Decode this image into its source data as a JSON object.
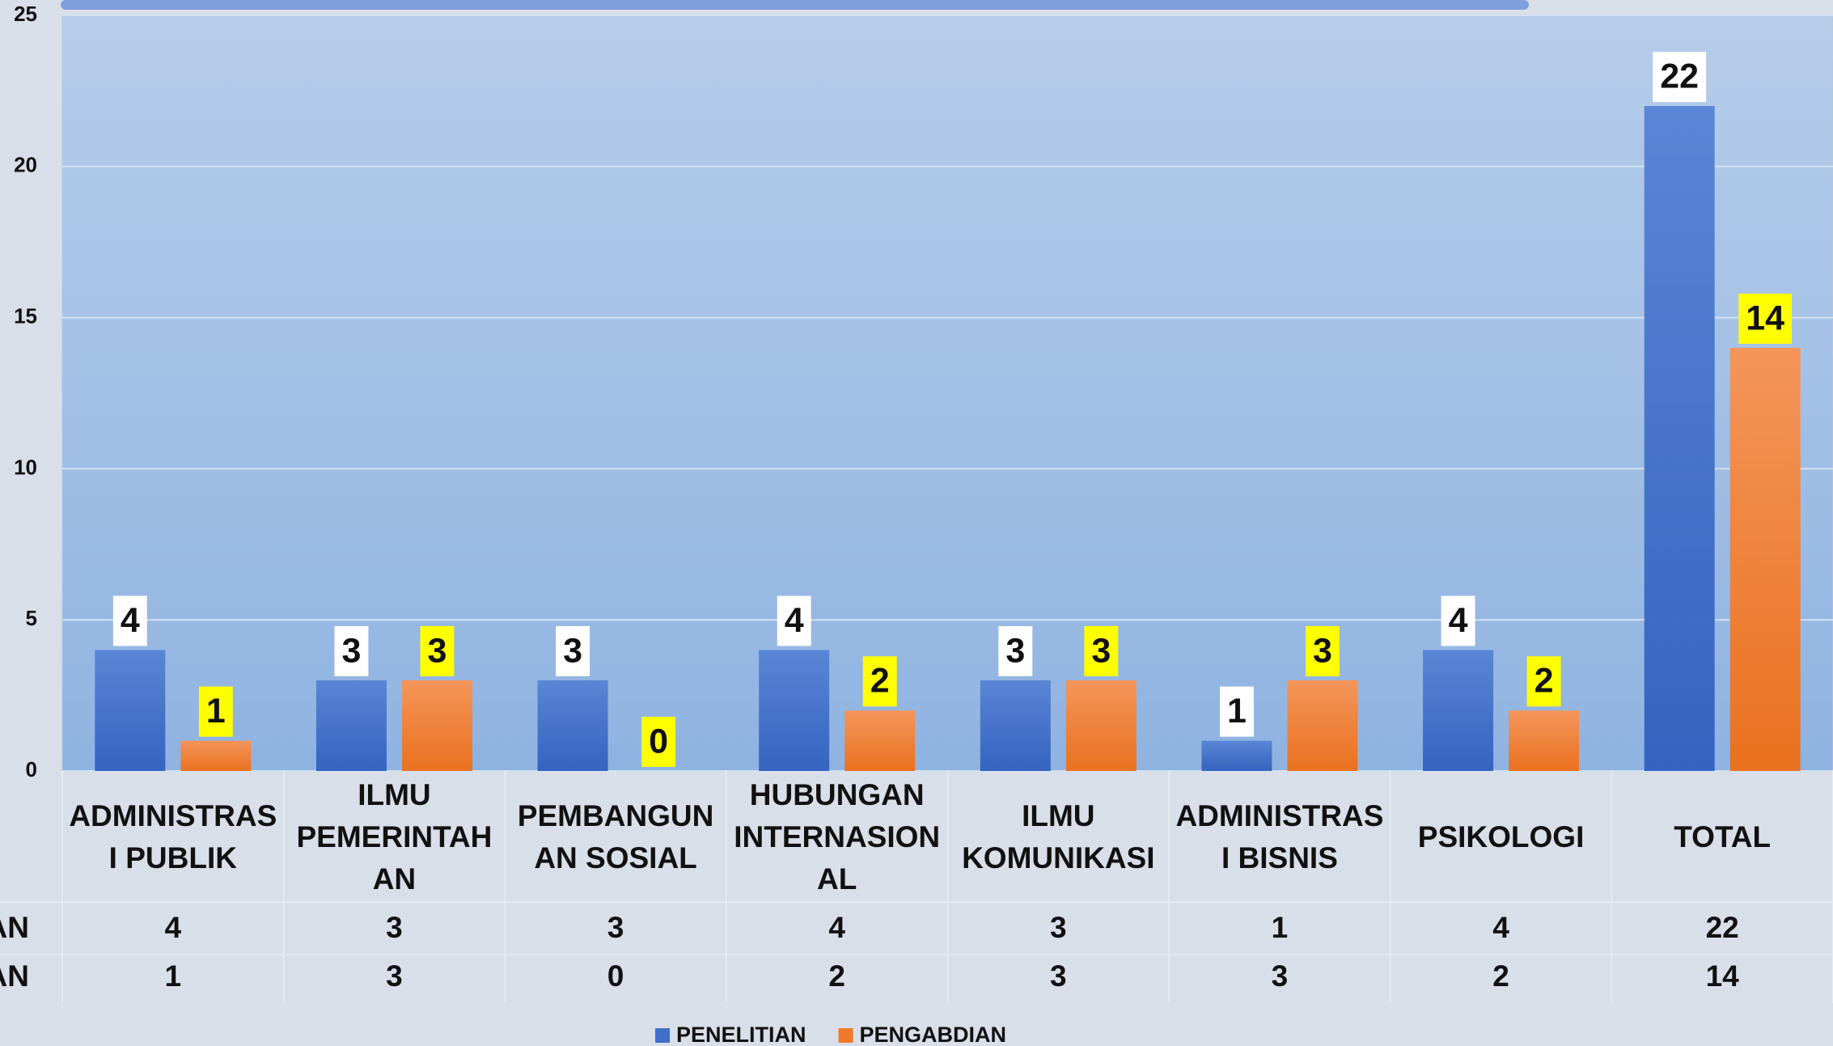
{
  "chart_data": {
    "type": "bar",
    "categories": [
      "ADMINISTRASI PUBLIK",
      "ILMU PEMERINTAHAN",
      "PEMBANGUNAN SOSIAL",
      "HUBUNGAN INTERNASIONAL",
      "ILMU KOMUNIKASI",
      "ADMINISTRASI BISNIS",
      "PSIKOLOGI",
      "TOTAL"
    ],
    "series": [
      {
        "name": "PENELITIAN",
        "color": "#3f6fc9",
        "label_background": "#ffffff",
        "values": [
          4,
          3,
          3,
          4,
          3,
          1,
          4,
          22
        ]
      },
      {
        "name": "PENGABDIAN",
        "color": "#ef7a2a",
        "label_background": "#ffff00",
        "values": [
          1,
          3,
          0,
          2,
          3,
          3,
          2,
          14
        ]
      }
    ],
    "ylim": [
      0,
      25
    ],
    "yticks": [
      0,
      5,
      10,
      15,
      20,
      25
    ],
    "grid": true,
    "data_table": true,
    "legend": "bottom"
  }
}
